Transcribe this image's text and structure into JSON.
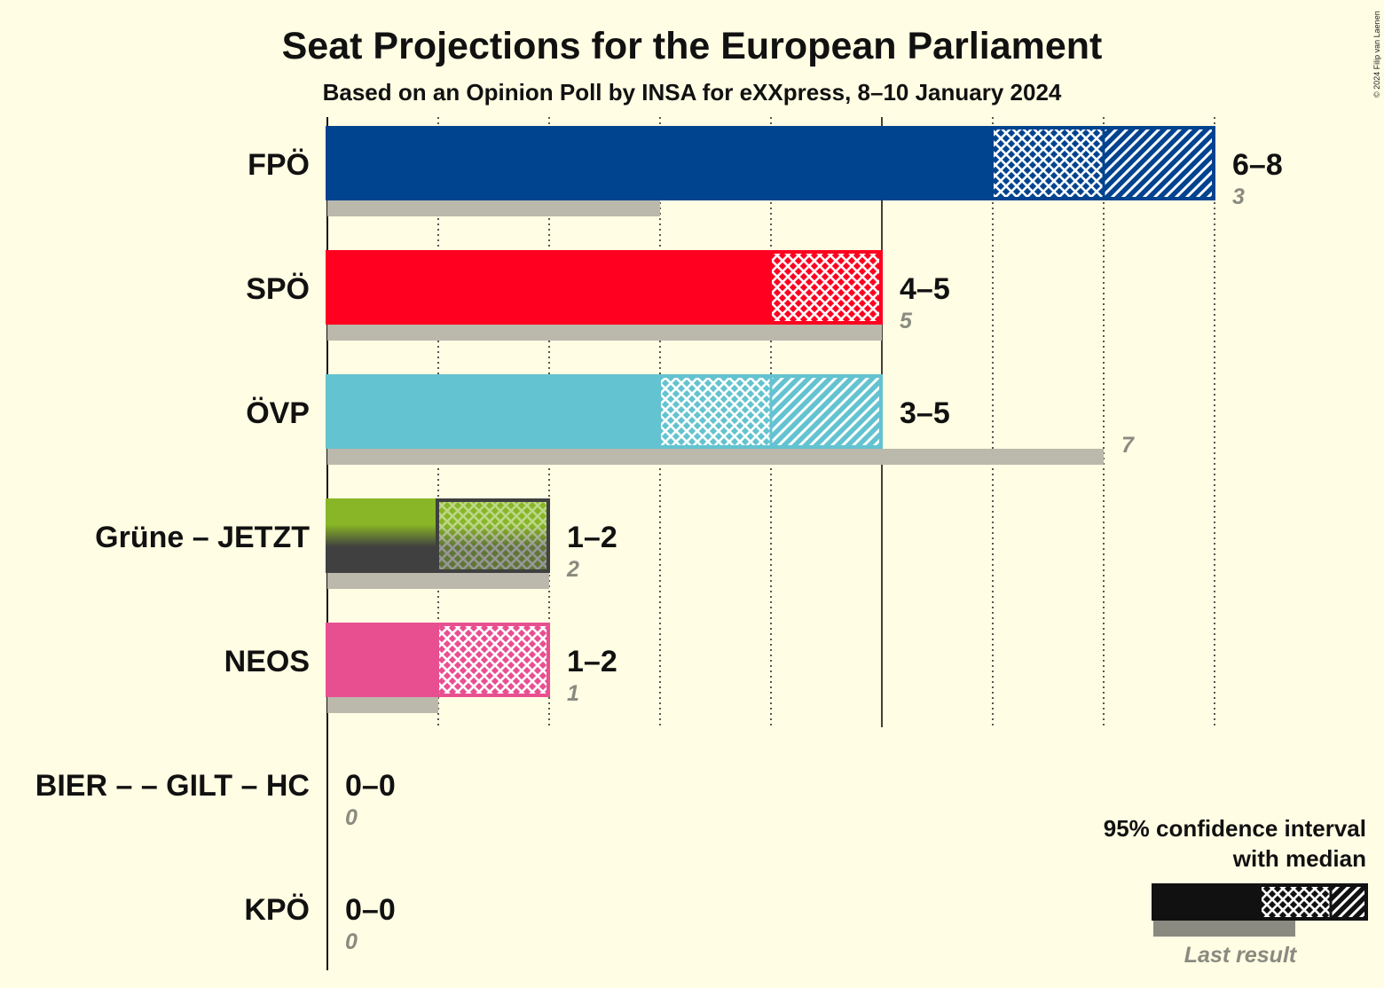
{
  "copyright": "© 2024 Filip van Laenen",
  "chart_data": {
    "type": "bar",
    "title": "Seat Projections for the European Parliament",
    "subtitle": "Based on an Opinion Poll by INSA for eXXpress, 8–10 January 2024",
    "xlim": [
      0,
      8
    ],
    "grid": true,
    "parties": [
      {
        "name": "FPÖ",
        "low": 6,
        "median": 7,
        "high": 8,
        "range_label": "6–8",
        "last": 3,
        "last_label": "3",
        "color": "#00438F",
        "color2": null
      },
      {
        "name": "SPÖ",
        "low": 4,
        "median": 5,
        "high": 5,
        "range_label": "4–5",
        "last": 5,
        "last_label": "5",
        "color": "#FF0020",
        "color2": null
      },
      {
        "name": "ÖVP",
        "low": 3,
        "median": 4,
        "high": 5,
        "range_label": "3–5",
        "last": 7,
        "last_label": "7",
        "color": "#63C3D0",
        "color2": null
      },
      {
        "name": "Grüne – JETZT",
        "low": 1,
        "median": 2,
        "high": 2,
        "range_label": "1–2",
        "last": 2,
        "last_label": "2",
        "color": "#88B626",
        "color2": "#404040"
      },
      {
        "name": "NEOS",
        "low": 1,
        "median": 2,
        "high": 2,
        "range_label": "1–2",
        "last": 1,
        "last_label": "1",
        "color": "#E84F91",
        "color2": null
      },
      {
        "name": "BIER – – GILT – HC",
        "low": 0,
        "median": 0,
        "high": 0,
        "range_label": "0–0",
        "last": 0,
        "last_label": "0",
        "color": "#888888",
        "color2": null
      },
      {
        "name": "KPÖ",
        "low": 0,
        "median": 0,
        "high": 0,
        "range_label": "0–0",
        "last": 0,
        "last_label": "0",
        "color": "#D00000",
        "color2": null
      }
    ],
    "legend": {
      "position": "bottom-right",
      "line1": "95% confidence interval",
      "line2": "with median",
      "last_result": "Last result",
      "color": "#111111"
    }
  }
}
